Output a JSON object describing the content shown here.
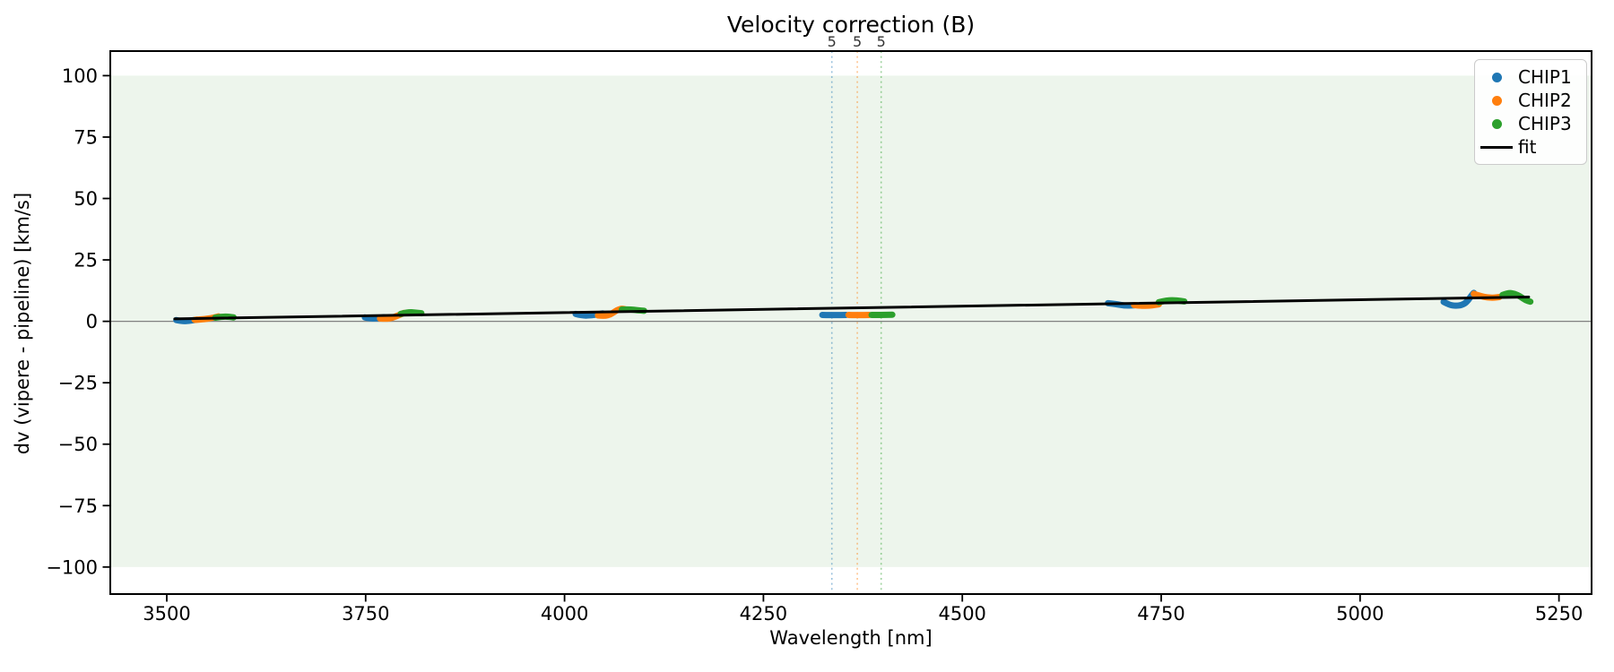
{
  "chart_data": {
    "type": "scatter",
    "title": "Velocity correction (B)",
    "xlabel": "Wavelength [nm]",
    "ylabel": "dv (vipere - pipeline) [km/s]",
    "xlim": [
      3429,
      5291
    ],
    "ylim": [
      -111,
      110
    ],
    "x_ticks": [
      3500,
      3750,
      4000,
      4250,
      4500,
      4750,
      5000,
      5250
    ],
    "y_ticks": [
      100,
      75,
      50,
      25,
      0,
      -25,
      -50,
      -75,
      -100
    ],
    "grid": false,
    "background_band": {
      "ymin": -100,
      "ymax": 100,
      "color": "#edf5ec"
    },
    "zero_line": {
      "y": 0,
      "color": "#808080"
    },
    "order_marker_vlines": [
      {
        "x": 4336,
        "label": "5",
        "color": "#1f77b4"
      },
      {
        "x": 4368,
        "label": "5",
        "color": "#ff7f0e"
      },
      {
        "x": 4398,
        "label": "5",
        "color": "#2ca02c"
      }
    ],
    "series": [
      {
        "name": "CHIP1",
        "color": "#1f77b4",
        "segments": [
          [
            [
              3512,
              0.5
            ],
            [
              3519,
              0.0
            ],
            [
              3528,
              0.2
            ],
            [
              3538,
              0.7
            ]
          ],
          [
            [
              3749,
              1.6
            ],
            [
              3756,
              1.1
            ],
            [
              3764,
              1.2
            ],
            [
              3773,
              1.7
            ]
          ],
          [
            [
              4014,
              3.0
            ],
            [
              4022,
              2.3
            ],
            [
              4034,
              2.4
            ],
            [
              4048,
              3.2
            ]
          ],
          [
            [
              4324,
              2.6
            ],
            [
              4339,
              2.5
            ],
            [
              4354,
              2.6
            ]
          ],
          [
            [
              4683,
              7.4
            ],
            [
              4694,
              7.0
            ],
            [
              4704,
              6.4
            ],
            [
              4716,
              6.5
            ]
          ],
          [
            [
              5105,
              7.9
            ],
            [
              5112,
              6.7
            ],
            [
              5120,
              6.3
            ],
            [
              5128,
              6.6
            ],
            [
              5134,
              7.8
            ],
            [
              5140,
              10.5
            ],
            [
              5143,
              11.6
            ]
          ]
        ]
      },
      {
        "name": "CHIP2",
        "color": "#ff7f0e",
        "segments": [
          [
            [
              3535,
              0.6
            ],
            [
              3545,
              0.8
            ],
            [
              3556,
              1.3
            ],
            [
              3565,
              2.0
            ]
          ],
          [
            [
              3768,
              1.2
            ],
            [
              3778,
              0.9
            ],
            [
              3788,
              2.0
            ],
            [
              3798,
              3.4
            ]
          ],
          [
            [
              4042,
              2.4
            ],
            [
              4050,
              2.1
            ],
            [
              4058,
              2.8
            ],
            [
              4066,
              4.6
            ],
            [
              4072,
              5.2
            ],
            [
              4076,
              4.9
            ]
          ],
          [
            [
              4357,
              2.6
            ],
            [
              4370,
              2.5
            ],
            [
              4383,
              2.6
            ]
          ],
          [
            [
              4716,
              6.6
            ],
            [
              4730,
              6.1
            ],
            [
              4747,
              6.9
            ]
          ],
          [
            [
              5143,
              11.2
            ],
            [
              5152,
              10.2
            ],
            [
              5160,
              9.7
            ],
            [
              5168,
              9.6
            ],
            [
              5175,
              9.9
            ]
          ]
        ]
      },
      {
        "name": "CHIP3",
        "color": "#2ca02c",
        "segments": [
          [
            [
              3561,
              1.5
            ],
            [
              3570,
              1.9
            ],
            [
              3577,
              1.9
            ],
            [
              3584,
              1.6
            ]
          ],
          [
            [
              3794,
              3.0
            ],
            [
              3803,
              3.8
            ],
            [
              3812,
              3.6
            ],
            [
              3820,
              3.3
            ]
          ],
          [
            [
              4072,
              4.8
            ],
            [
              4082,
              4.9
            ],
            [
              4092,
              4.5
            ],
            [
              4100,
              4.3
            ]
          ],
          [
            [
              4386,
              2.6
            ],
            [
              4398,
              2.6
            ],
            [
              4412,
              2.7
            ]
          ],
          [
            [
              4747,
              7.8
            ],
            [
              4758,
              8.6
            ],
            [
              4770,
              8.5
            ],
            [
              4779,
              8.1
            ]
          ],
          [
            [
              5179,
              10.7
            ],
            [
              5186,
              11.6
            ],
            [
              5194,
              11.3
            ],
            [
              5202,
              10.0
            ],
            [
              5208,
              8.6
            ],
            [
              5214,
              8.0
            ]
          ]
        ]
      }
    ],
    "fit": {
      "name": "fit",
      "color": "#000000",
      "points": [
        [
          3510,
          1.0
        ],
        [
          5212,
          9.9
        ]
      ]
    },
    "legend": {
      "position": "upper right",
      "items": [
        {
          "label": "CHIP1",
          "color": "#1f77b4",
          "marker": "dot"
        },
        {
          "label": "CHIP2",
          "color": "#ff7f0e",
          "marker": "dot"
        },
        {
          "label": "CHIP3",
          "color": "#2ca02c",
          "marker": "dot"
        },
        {
          "label": "fit",
          "color": "#000000",
          "marker": "line"
        }
      ]
    }
  }
}
